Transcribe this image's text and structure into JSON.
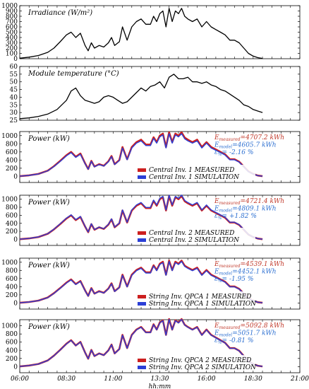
{
  "chart_data": [
    {
      "type": "line",
      "title": "Irradiance (W/m²)",
      "ylim": [
        0,
        1000
      ],
      "yticks": [
        0,
        100,
        200,
        300,
        400,
        500,
        600,
        700,
        800,
        900,
        1000
      ],
      "xlim": [
        "06:00",
        "21:00"
      ],
      "series": [
        {
          "color": "#000000",
          "x": [
            "06:00",
            "06:30",
            "07:00",
            "07:30",
            "07:50",
            "08:10",
            "08:30",
            "08:45",
            "09:00",
            "09:15",
            "09:30",
            "09:40",
            "09:50",
            "10:00",
            "10:15",
            "10:30",
            "10:45",
            "10:55",
            "11:05",
            "11:20",
            "11:30",
            "11:45",
            "12:00",
            "12:15",
            "12:30",
            "12:45",
            "13:00",
            "13:10",
            "13:20",
            "13:30",
            "13:40",
            "13:50",
            "14:00",
            "14:10",
            "14:20",
            "14:30",
            "14:40",
            "14:50",
            "15:00",
            "15:15",
            "15:30",
            "15:45",
            "16:00",
            "16:15",
            "16:30",
            "16:45",
            "17:00",
            "17:15",
            "17:30",
            "17:45",
            "18:00",
            "18:15",
            "18:30",
            "18:45",
            "19:00"
          ],
          "values": [
            10,
            30,
            60,
            120,
            200,
            320,
            450,
            500,
            400,
            480,
            250,
            150,
            300,
            200,
            250,
            220,
            300,
            400,
            250,
            320,
            600,
            350,
            600,
            700,
            750,
            650,
            650,
            800,
            700,
            850,
            900,
            600,
            950,
            700,
            900,
            850,
            950,
            800,
            750,
            700,
            750,
            600,
            700,
            600,
            550,
            500,
            450,
            350,
            350,
            300,
            200,
            100,
            50,
            20,
            5
          ]
        }
      ]
    },
    {
      "type": "line",
      "title": "Module temperature (°C)",
      "ylim": [
        25,
        60
      ],
      "yticks": [
        25,
        30,
        35,
        40,
        45,
        50,
        55,
        60
      ],
      "xlim": [
        "06:00",
        "21:00"
      ],
      "series": [
        {
          "color": "#000000",
          "x": [
            "06:00",
            "06:30",
            "07:00",
            "07:30",
            "08:00",
            "08:30",
            "08:45",
            "09:00",
            "09:15",
            "09:30",
            "09:45",
            "10:00",
            "10:15",
            "10:30",
            "10:45",
            "11:00",
            "11:15",
            "11:30",
            "11:45",
            "12:00",
            "12:15",
            "12:30",
            "12:45",
            "13:00",
            "13:15",
            "13:30",
            "13:45",
            "14:00",
            "14:15",
            "14:30",
            "14:45",
            "15:00",
            "15:15",
            "15:30",
            "15:45",
            "16:00",
            "16:15",
            "16:30",
            "16:45",
            "17:00",
            "17:15",
            "17:30",
            "17:45",
            "18:00",
            "18:15",
            "18:30",
            "18:45",
            "19:00"
          ],
          "values": [
            26,
            26.5,
            27.5,
            29,
            32,
            38,
            44,
            46,
            41,
            38,
            37,
            36,
            37,
            40,
            41,
            40,
            38,
            36,
            37,
            40,
            43,
            46,
            44,
            47,
            48,
            50,
            46,
            53,
            55,
            52,
            52,
            53,
            50,
            50,
            49,
            50,
            48,
            47,
            45,
            44,
            42,
            40,
            38,
            35,
            34,
            32,
            31,
            30
          ]
        }
      ]
    },
    {
      "type": "line",
      "ylabel": "Power (kW)",
      "ylim": [
        -150,
        1100
      ],
      "yticks": [
        0,
        200,
        400,
        600,
        800,
        1000
      ],
      "xlim": [
        "06:00",
        "21:00"
      ],
      "annotations": [
        {
          "prefix": "E",
          "sub": "measured",
          "text": "=4707.2 kWh",
          "color": "#c0392b"
        },
        {
          "prefix": "E",
          "sub": "model",
          "text": "=4605.7 kWh",
          "color": "#2c6fd1"
        },
        {
          "prefix": "ε",
          "sub": "%",
          "text": "= -2.16 %",
          "color": "#2c6fd1"
        }
      ],
      "legend": "bottom-center",
      "series": [
        {
          "name": "Central Inv. 1 MEASURED",
          "color": "#cc1f1f",
          "values": [
            5,
            25,
            60,
            140,
            250,
            380,
            520,
            600,
            480,
            560,
            320,
            180,
            380,
            240,
            300,
            260,
            370,
            500,
            300,
            400,
            720,
            420,
            720,
            840,
            900,
            780,
            780,
            960,
            840,
            1000,
            1050,
            720,
            1080,
            840,
            1050,
            1000,
            1080,
            950,
            900,
            840,
            900,
            720,
            840,
            720,
            660,
            600,
            540,
            420,
            420,
            360,
            240,
            120,
            60,
            20,
            5
          ]
        },
        {
          "name": "Central Inv. 1 SIMULATION",
          "color": "#2b3fd6",
          "values": [
            5,
            24,
            58,
            136,
            243,
            368,
            504,
            582,
            466,
            543,
            310,
            175,
            369,
            233,
            291,
            252,
            359,
            485,
            291,
            388,
            698,
            407,
            698,
            815,
            873,
            757,
            757,
            931,
            815,
            970,
            1018,
            698,
            1048,
            815,
            1018,
            970,
            1048,
            921,
            873,
            815,
            873,
            698,
            815,
            698,
            640,
            582,
            524,
            407,
            407,
            349,
            233,
            116,
            58,
            19,
            5
          ]
        }
      ]
    },
    {
      "type": "line",
      "ylabel": "Power (kW)",
      "ylim": [
        -150,
        1100
      ],
      "yticks": [
        0,
        200,
        400,
        600,
        800,
        1000
      ],
      "xlim": [
        "06:00",
        "21:00"
      ],
      "annotations": [
        {
          "prefix": "E",
          "sub": "measured",
          "text": "=4721.4 kWh",
          "color": "#c0392b"
        },
        {
          "prefix": "E",
          "sub": "model",
          "text": "=4809.1 kWh",
          "color": "#2c6fd1"
        },
        {
          "prefix": "ε",
          "sub": "%",
          "text": "= +1.82 %",
          "color": "#2c6fd1"
        }
      ],
      "legend": "bottom-center",
      "series": [
        {
          "name": "Central Inv. 2 MEASURED",
          "color": "#cc1f1f",
          "values": [
            5,
            25,
            60,
            140,
            250,
            380,
            520,
            600,
            480,
            560,
            320,
            180,
            380,
            240,
            300,
            260,
            370,
            500,
            300,
            400,
            720,
            420,
            720,
            840,
            900,
            780,
            780,
            960,
            840,
            1000,
            1050,
            720,
            1080,
            840,
            1050,
            1000,
            1080,
            950,
            900,
            840,
            900,
            720,
            840,
            720,
            660,
            600,
            540,
            420,
            420,
            360,
            240,
            120,
            60,
            20,
            5
          ]
        },
        {
          "name": "Central Inv. 2 SIMULATION",
          "color": "#2b3fd6",
          "values": [
            5,
            25,
            61,
            143,
            255,
            388,
            530,
            612,
            490,
            571,
            326,
            184,
            388,
            245,
            306,
            265,
            377,
            510,
            306,
            408,
            734,
            428,
            734,
            857,
            918,
            796,
            796,
            979,
            857,
            1020,
            1071,
            734,
            1102,
            857,
            1071,
            1020,
            1102,
            969,
            918,
            857,
            918,
            734,
            857,
            734,
            673,
            612,
            551,
            428,
            428,
            367,
            245,
            122,
            61,
            20,
            5
          ]
        }
      ]
    },
    {
      "type": "line",
      "ylabel": "Power (kW)",
      "ylim": [
        -150,
        1100
      ],
      "yticks": [
        0,
        200,
        400,
        600,
        800,
        1000
      ],
      "xlim": [
        "06:00",
        "21:00"
      ],
      "annotations": [
        {
          "prefix": "E",
          "sub": "measured",
          "text": "=4539.1 kWh",
          "color": "#c0392b"
        },
        {
          "prefix": "E",
          "sub": "model",
          "text": "=4452.1 kWh",
          "color": "#2c6fd1"
        },
        {
          "prefix": "ε",
          "sub": "%",
          "text": "= -1.95 %",
          "color": "#2c6fd1"
        }
      ],
      "legend": "bottom-center",
      "series": [
        {
          "name": "String Inv. QPCA 1 MEASURED",
          "color": "#cc1f1f",
          "values": [
            5,
            24,
            58,
            135,
            240,
            365,
            500,
            578,
            462,
            540,
            308,
            173,
            366,
            231,
            289,
            250,
            356,
            482,
            289,
            385,
            694,
            404,
            694,
            809,
            867,
            751,
            751,
            925,
            809,
            963,
            1011,
            694,
            1040,
            809,
            1011,
            963,
            1040,
            915,
            867,
            809,
            867,
            694,
            809,
            694,
            636,
            578,
            520,
            404,
            404,
            347,
            231,
            116,
            58,
            19,
            5
          ]
        },
        {
          "name": "String Inv. QPCA 1 SIMULATION",
          "color": "#2b3fd6",
          "values": [
            5,
            23,
            57,
            132,
            235,
            358,
            490,
            567,
            453,
            530,
            302,
            170,
            359,
            227,
            283,
            245,
            349,
            472,
            283,
            378,
            680,
            396,
            680,
            793,
            850,
            736,
            736,
            907,
            793,
            944,
            991,
            680,
            1020,
            793,
            991,
            944,
            1020,
            897,
            850,
            793,
            850,
            680,
            793,
            680,
            623,
            567,
            510,
            396,
            396,
            340,
            227,
            113,
            57,
            19,
            5
          ]
        }
      ]
    },
    {
      "type": "line",
      "ylabel": "Power (kW)",
      "ylim": [
        -150,
        1150
      ],
      "yticks": [
        0,
        200,
        400,
        600,
        800,
        1000
      ],
      "xlim": [
        "06:00",
        "21:00"
      ],
      "xticks": [
        "06:00",
        "08:30",
        "11:00",
        "13:30",
        "16:00",
        "18:30",
        "21:00"
      ],
      "xlabel": "hh:mm",
      "annotations": [
        {
          "prefix": "E",
          "sub": "measured",
          "text": "=5092.8 kWh",
          "color": "#c0392b"
        },
        {
          "prefix": "E",
          "sub": "model",
          "text": "=5051.7 kWh",
          "color": "#2c6fd1"
        },
        {
          "prefix": "ε",
          "sub": "%",
          "text": "= -0.81 %",
          "color": "#2c6fd1"
        }
      ],
      "legend": "bottom-center",
      "series": [
        {
          "name": "String Inv. QPCA 2 MEASURED",
          "color": "#cc1f1f",
          "values": [
            5,
            27,
            65,
            151,
            270,
            410,
            562,
            648,
            518,
            605,
            346,
            194,
            410,
            259,
            324,
            281,
            400,
            540,
            324,
            432,
            778,
            454,
            778,
            907,
            972,
            842,
            842,
            1037,
            907,
            1080,
            1134,
            778,
            1166,
            907,
            1134,
            1080,
            1166,
            1026,
            972,
            907,
            972,
            778,
            907,
            778,
            713,
            648,
            583,
            454,
            454,
            389,
            259,
            130,
            65,
            22,
            5
          ]
        },
        {
          "name": "String Inv. QPCA 2 SIMULATION",
          "color": "#2b3fd6",
          "values": [
            5,
            27,
            64,
            150,
            268,
            407,
            557,
            643,
            514,
            600,
            343,
            193,
            407,
            257,
            321,
            279,
            396,
            536,
            321,
            428,
            771,
            450,
            771,
            900,
            964,
            835,
            835,
            1028,
            900,
            1071,
            1125,
            771,
            1157,
            900,
            1125,
            1071,
            1157,
            1018,
            964,
            900,
            964,
            771,
            900,
            771,
            707,
            643,
            578,
            450,
            450,
            386,
            257,
            129,
            64,
            21,
            5
          ]
        }
      ]
    }
  ]
}
